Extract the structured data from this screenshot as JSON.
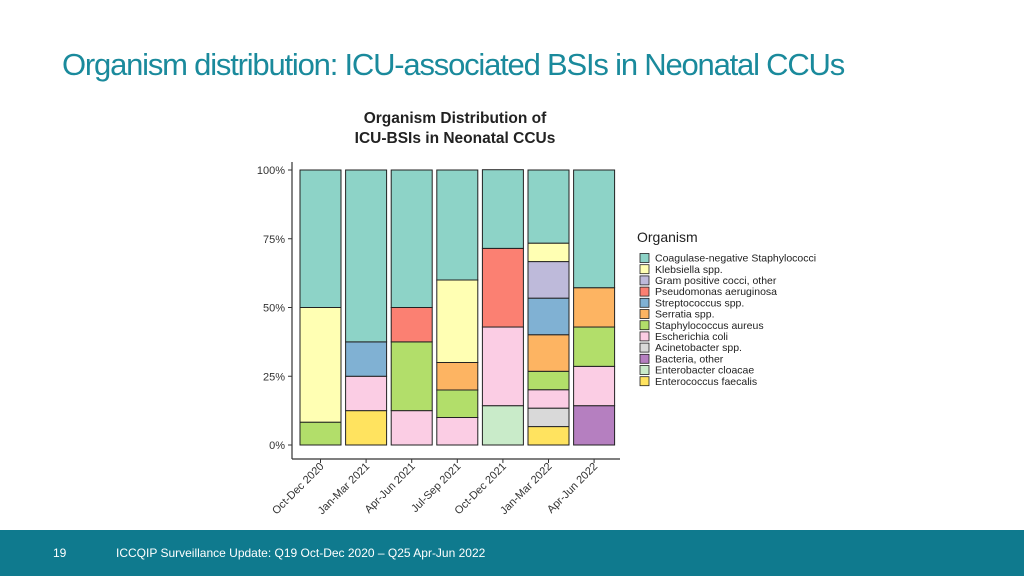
{
  "slide": {
    "title": "Organism distribution: ICU-associated BSIs in Neonatal CCUs"
  },
  "footer": {
    "page_number": "19",
    "text": "ICCQIP Surveillance Update: Q19 Oct-Dec 2020 – Q25 Apr-Jun 2022"
  },
  "chart_data": {
    "type": "bar",
    "stacked": true,
    "normalized": true,
    "title_lines": [
      "Organism Distribution of",
      "ICU-BSIs in Neonatal CCUs"
    ],
    "categories": [
      "Oct-Dec 2020",
      "Jan-Mar 2021",
      "Apr-Jun 2021",
      "Jul-Sep 2021",
      "Oct-Dec 2021",
      "Jan-Mar 2022",
      "Apr-Jun 2022"
    ],
    "ylim": [
      0,
      1
    ],
    "yticks": [
      {
        "value": 0,
        "label": "0%"
      },
      {
        "value": 0.25,
        "label": "25%"
      },
      {
        "value": 0.5,
        "label": "50%"
      },
      {
        "value": 0.75,
        "label": "75%"
      },
      {
        "value": 1,
        "label": "100%"
      }
    ],
    "grid": false,
    "legend_title": "Organism",
    "legend_position": "right",
    "series": [
      {
        "name": "Enterococcus faecalis",
        "color": "#ffe35f",
        "values": [
          0,
          0.125,
          0,
          0,
          0,
          0.067,
          0
        ]
      },
      {
        "name": "Enterobacter cloacae",
        "color": "#c9ebc9",
        "values": [
          0,
          0,
          0,
          0,
          0.143,
          0,
          0
        ]
      },
      {
        "name": "Bacteria, other",
        "color": "#b57fc0",
        "values": [
          0,
          0,
          0,
          0,
          0,
          0,
          0.143
        ]
      },
      {
        "name": "Acinetobacter spp.",
        "color": "#d9d9d9",
        "values": [
          0,
          0,
          0,
          0,
          0,
          0.067,
          0
        ]
      },
      {
        "name": "Escherichia coli",
        "color": "#fbcde4",
        "values": [
          0,
          0.125,
          0.125,
          0.1,
          0.286,
          0.067,
          0.143
        ]
      },
      {
        "name": "Staphylococcus aureus",
        "color": "#b2de6a",
        "values": [
          0.083,
          0,
          0.25,
          0.1,
          0,
          0.067,
          0.143
        ]
      },
      {
        "name": "Serratia spp.",
        "color": "#fdb462",
        "values": [
          0,
          0,
          0,
          0.1,
          0,
          0.133,
          0.143
        ]
      },
      {
        "name": "Streptococcus spp.",
        "color": "#80b1d3",
        "values": [
          0,
          0.125,
          0,
          0,
          0,
          0.133,
          0
        ]
      },
      {
        "name": "Pseudomonas aeruginosa",
        "color": "#fb8072",
        "values": [
          0,
          0,
          0.125,
          0,
          0.286,
          0,
          0
        ]
      },
      {
        "name": "Gram positive cocci, other",
        "color": "#bebada",
        "values": [
          0,
          0,
          0,
          0,
          0,
          0.133,
          0
        ]
      },
      {
        "name": "Klebsiella spp.",
        "color": "#ffffb3",
        "values": [
          0.417,
          0,
          0,
          0.3,
          0,
          0.067,
          0
        ]
      },
      {
        "name": "Coagulase-negative Staphylococci",
        "color": "#8dd3c7",
        "values": [
          0.5,
          0.625,
          0.5,
          0.4,
          0.286,
          0.266,
          0.428
        ]
      }
    ]
  }
}
